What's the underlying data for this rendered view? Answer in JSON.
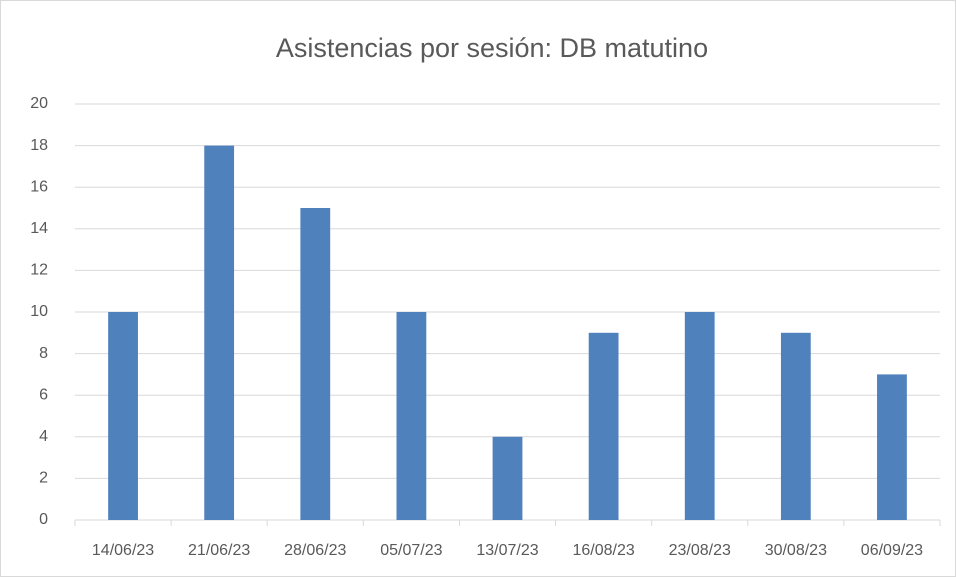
{
  "chart_data": {
    "type": "bar",
    "title": "Asistencias por sesión: DB matutino",
    "categories": [
      "14/06/23",
      "21/06/23",
      "28/06/23",
      "05/07/23",
      "13/07/23",
      "16/08/23",
      "23/08/23",
      "30/08/23",
      "06/09/23"
    ],
    "values": [
      10,
      18,
      15,
      10,
      4,
      9,
      10,
      9,
      7
    ],
    "color": "#4f81bd",
    "ylim": [
      0,
      20
    ],
    "yticks": [
      0,
      2,
      4,
      6,
      8,
      10,
      12,
      14,
      16,
      18,
      20
    ],
    "grid": true
  }
}
